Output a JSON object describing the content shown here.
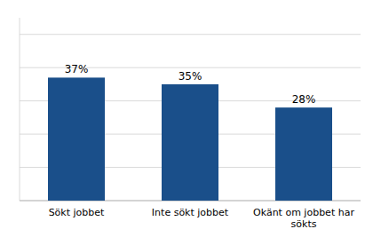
{
  "chart_data": {
    "type": "bar",
    "categories": [
      "Sökt jobbet",
      "Inte sökt jobbet",
      "Okänt om jobbet har\nsökts"
    ],
    "values": [
      37,
      35,
      28
    ],
    "value_labels": [
      "37%",
      "35%",
      "28%"
    ],
    "data_labels": true,
    "color": "#1a4f8a",
    "ylim": [
      0,
      55
    ],
    "yticks": [
      0,
      10,
      20,
      30,
      40,
      50
    ],
    "grid": true,
    "tick_labels": "x"
  }
}
